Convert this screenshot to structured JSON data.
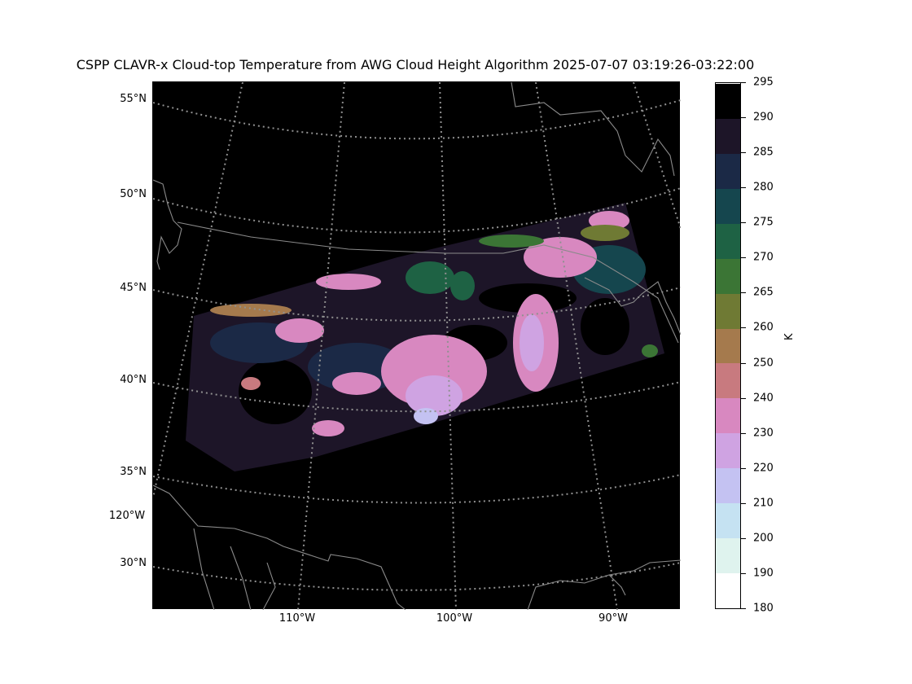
{
  "title": "CSPP CLAVR-x Cloud-top Temperature from AWG Cloud Height Algorithm 2025-07-07 03:19:26-03:22:00",
  "lat_labels": [
    "55°N",
    "50°N",
    "45°N",
    "40°N",
    "35°N",
    "30°N"
  ],
  "lon_labels": [
    "120°W",
    "110°W",
    "100°W",
    "90°W"
  ],
  "colorbar": {
    "unit": "K",
    "ticks": [
      "295",
      "290",
      "285",
      "280",
      "275",
      "270",
      "265",
      "260",
      "250",
      "240",
      "230",
      "220",
      "210",
      "200",
      "190",
      "180"
    ],
    "bins": [
      {
        "range": [
          180,
          190
        ],
        "color": "#ffffff"
      },
      {
        "range": [
          190,
          200
        ],
        "color": "#dff3ee"
      },
      {
        "range": [
          200,
          210
        ],
        "color": "#c5e2f2"
      },
      {
        "range": [
          210,
          220
        ],
        "color": "#c4c2f2"
      },
      {
        "range": [
          220,
          230
        ],
        "color": "#cfa3e2"
      },
      {
        "range": [
          230,
          240
        ],
        "color": "#d888c0"
      },
      {
        "range": [
          240,
          250
        ],
        "color": "#c87a7f"
      },
      {
        "range": [
          250,
          260
        ],
        "color": "#a57a4d"
      },
      {
        "range": [
          260,
          265
        ],
        "color": "#6f7a34"
      },
      {
        "range": [
          265,
          270
        ],
        "color": "#3b7535"
      },
      {
        "range": [
          270,
          275
        ],
        "color": "#1e6244"
      },
      {
        "range": [
          275,
          280
        ],
        "color": "#15464e"
      },
      {
        "range": [
          280,
          285
        ],
        "color": "#1b2946"
      },
      {
        "range": [
          285,
          290
        ],
        "color": "#1d1528"
      },
      {
        "range": [
          290,
          295
        ],
        "color": "#000000"
      }
    ]
  }
}
